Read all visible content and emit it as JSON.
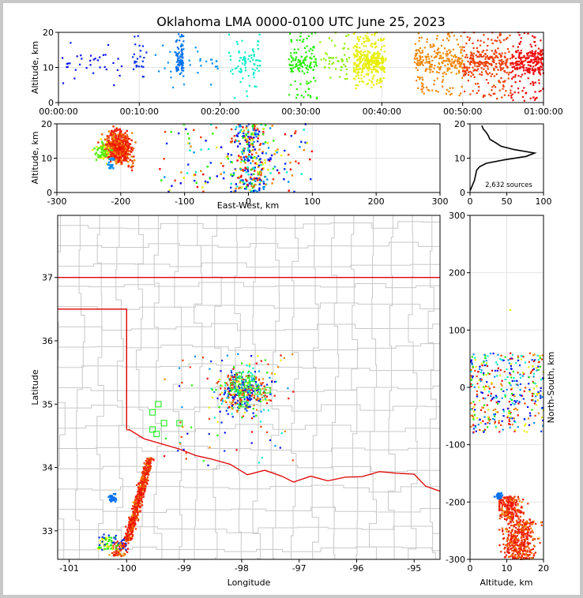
{
  "figure": {
    "title": "Oklahoma LMA 0000-0100 UTC June 25, 2023"
  },
  "chart_data": [
    {
      "id": "time-altitude",
      "type": "scatter",
      "xlabel": "",
      "ylabel": "Altitude, km",
      "xticks": [
        "00:00:00",
        "00:10:00",
        "00:20:00",
        "00:30:00",
        "00:40:00",
        "00:50:00",
        "01:00:00"
      ],
      "xlim_minutes": [
        0,
        60
      ],
      "ylim": [
        0,
        20
      ],
      "yticks": [
        0,
        10,
        20
      ],
      "color_by": "time (blue early -> red late)",
      "clusters": [
        {
          "t": [
            0.5,
            8
          ],
          "alt": [
            2,
            19
          ],
          "n": 35,
          "hue": 238
        },
        {
          "t": [
            9,
            11
          ],
          "alt": [
            5,
            19
          ],
          "n": 25,
          "hue": 230
        },
        {
          "t": [
            14.5,
            15.5
          ],
          "alt": [
            7,
            20
          ],
          "n": 90,
          "hue": 212
        },
        {
          "t": [
            12,
            20
          ],
          "alt": [
            3,
            19
          ],
          "n": 30,
          "hue": 205
        },
        {
          "t": [
            21,
            25
          ],
          "alt": [
            1,
            20
          ],
          "n": 80,
          "hue": 170
        },
        {
          "t": [
            28.5,
            32
          ],
          "alt": [
            1,
            20
          ],
          "n": 130,
          "hue": 112
        },
        {
          "t": [
            32,
            36
          ],
          "alt": [
            6,
            20
          ],
          "n": 50,
          "hue": 85
        },
        {
          "t": [
            36.5,
            40.5
          ],
          "alt": [
            4,
            20
          ],
          "n": 320,
          "hue": 62
        },
        {
          "t": [
            44,
            50
          ],
          "alt": [
            2,
            20
          ],
          "n": 260,
          "hue": 33
        },
        {
          "t": [
            50,
            56
          ],
          "alt": [
            1,
            20
          ],
          "n": 290,
          "hue": 14
        },
        {
          "t": [
            56,
            60
          ],
          "alt": [
            0.5,
            20
          ],
          "n": 260,
          "hue": 0
        }
      ]
    },
    {
      "id": "eastwest-altitude",
      "type": "scatter",
      "xlabel": "East-West, km",
      "ylabel": "Altitude, km",
      "xlim": [
        -300,
        300
      ],
      "xticks": [
        -300,
        -200,
        -100,
        0,
        100,
        200,
        300
      ],
      "ylim": [
        0,
        20
      ],
      "yticks": [
        0,
        10,
        20
      ]
    },
    {
      "id": "altitude-histogram",
      "type": "line",
      "xlim": [
        0,
        100
      ],
      "xticks": [
        0,
        50,
        100
      ],
      "ylim": [
        0,
        20
      ],
      "yticks": [
        0,
        10,
        20
      ],
      "annotation": "2,632 sources",
      "profile": [
        {
          "alt": 0.5,
          "count": 0
        },
        {
          "alt": 1.5,
          "count": 2
        },
        {
          "alt": 2.5,
          "count": 4
        },
        {
          "alt": 3.5,
          "count": 6
        },
        {
          "alt": 4.5,
          "count": 7
        },
        {
          "alt": 5.5,
          "count": 8
        },
        {
          "alt": 6.5,
          "count": 9
        },
        {
          "alt": 7.5,
          "count": 13
        },
        {
          "alt": 8.5,
          "count": 22
        },
        {
          "alt": 9.5,
          "count": 46
        },
        {
          "alt": 10.5,
          "count": 76
        },
        {
          "alt": 11.5,
          "count": 88
        },
        {
          "alt": 12.5,
          "count": 60
        },
        {
          "alt": 13.5,
          "count": 42
        },
        {
          "alt": 14.5,
          "count": 35
        },
        {
          "alt": 15.5,
          "count": 27
        },
        {
          "alt": 16.5,
          "count": 25
        },
        {
          "alt": 17.5,
          "count": 22
        },
        {
          "alt": 18.5,
          "count": 18
        },
        {
          "alt": 19.5,
          "count": 16
        }
      ]
    },
    {
      "id": "plan-view-map",
      "type": "scatter",
      "xlabel": "Longitude",
      "ylabel": "Latitude",
      "xlim": [
        -101.2,
        -94.55
      ],
      "ylim": [
        32.55,
        37.98
      ],
      "xticks": [
        -101,
        -100,
        -99,
        -98,
        -97,
        -96,
        -95
      ],
      "yticks": [
        33,
        34,
        35,
        36,
        37
      ],
      "stations": [
        {
          "lon": -99.45,
          "lat": 35.0
        },
        {
          "lon": -99.55,
          "lat": 34.87
        },
        {
          "lon": -99.35,
          "lat": 34.7
        },
        {
          "lon": -99.08,
          "lat": 34.7
        },
        {
          "lon": -99.48,
          "lat": 34.53
        },
        {
          "lon": -99.55,
          "lat": 34.6
        },
        {
          "lon": -98.05,
          "lat": 35.45
        },
        {
          "lon": -97.82,
          "lat": 35.4
        },
        {
          "lon": -97.9,
          "lat": 35.3
        },
        {
          "lon": -98.15,
          "lat": 35.28
        },
        {
          "lon": -97.72,
          "lat": 35.2
        },
        {
          "lon": -98.0,
          "lat": 35.15
        },
        {
          "lon": -97.95,
          "lat": 35.0
        },
        {
          "lon": -97.55,
          "lat": 35.22
        }
      ]
    },
    {
      "id": "altitude-northsouth",
      "type": "scatter",
      "xlabel": "Altitude, km",
      "ylabel": "North-South, km",
      "xlim": [
        0,
        20
      ],
      "xticks": [
        0,
        10,
        20
      ],
      "ylim": [
        -300,
        300
      ],
      "yticks": [
        -300,
        -200,
        -100,
        0,
        100,
        200,
        300
      ]
    }
  ]
}
